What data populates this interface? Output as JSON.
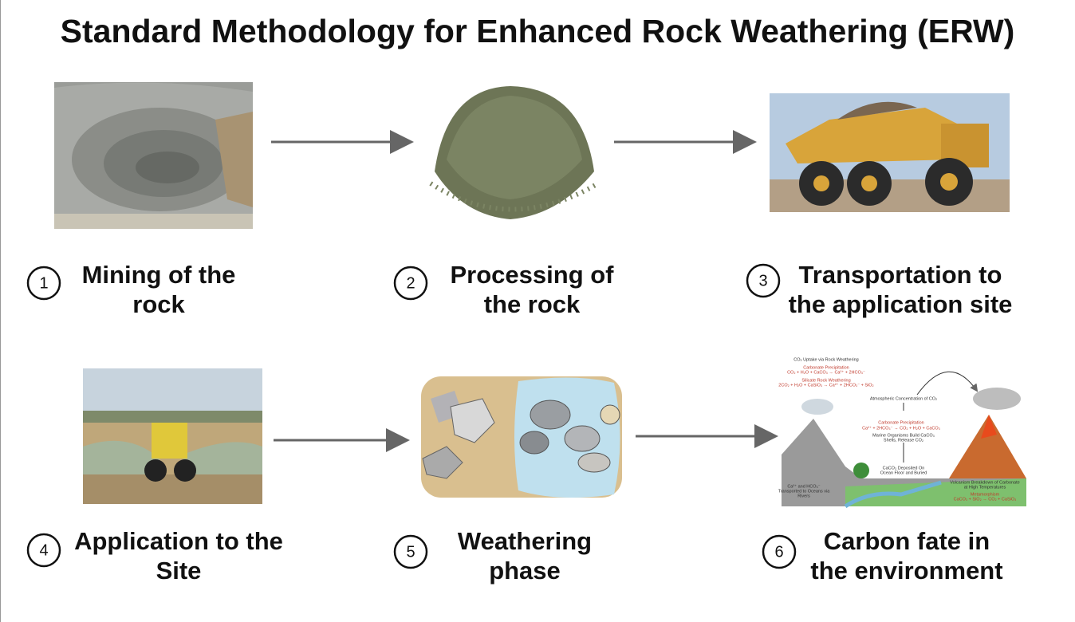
{
  "title": "Standard Methodology for Enhanced Rock Weathering (ERW)",
  "steps": [
    {
      "number": "1",
      "label_lines": [
        "Mining of the",
        "rock"
      ]
    },
    {
      "number": "2",
      "label_lines": [
        "Processing of",
        "the rock"
      ]
    },
    {
      "number": "3",
      "label_lines": [
        "Transportation to",
        "the application site"
      ]
    },
    {
      "number": "4",
      "label_lines": [
        "Application to the",
        "Site"
      ]
    },
    {
      "number": "5",
      "label_lines": [
        "Weathering",
        "phase"
      ]
    },
    {
      "number": "6",
      "label_lines": [
        "Carbon fate in",
        "the environment"
      ]
    }
  ],
  "carbon_diagram": {
    "texts": [
      "CO₂ Uptake via Rock Weathering",
      "Carbonate Precipitation",
      "CO₂ + H₂O + CaCO₃ → Ca²⁺ + 2HCO₃⁻",
      "Silicate Rock Weathering",
      "2CO₂ + H₂O + CaSiO₃ → Ca²⁺ + 2HCO₃⁻ + SiO₂",
      "Atmospheric Concentration of CO₂",
      "Carbonate Precipitation",
      "Ca²⁺ + 2HCO₃⁻ → CO₂ + H₂O + CaCO₃",
      "Marine Organisms Build CaCO₃",
      "Shells, Release CO₂",
      "CaCO₃ Deposited On",
      "Ocean Floor and Buried",
      "Volcanism Breakdown of Carbonate",
      "at High Temperatures",
      "Metamorphism",
      "CaCO₃ + SiO₂ → CO₂ + CaSiO₃",
      "Ca²⁺ and HCO₃⁻",
      "Transported to Oceans via",
      "Rivers"
    ]
  }
}
